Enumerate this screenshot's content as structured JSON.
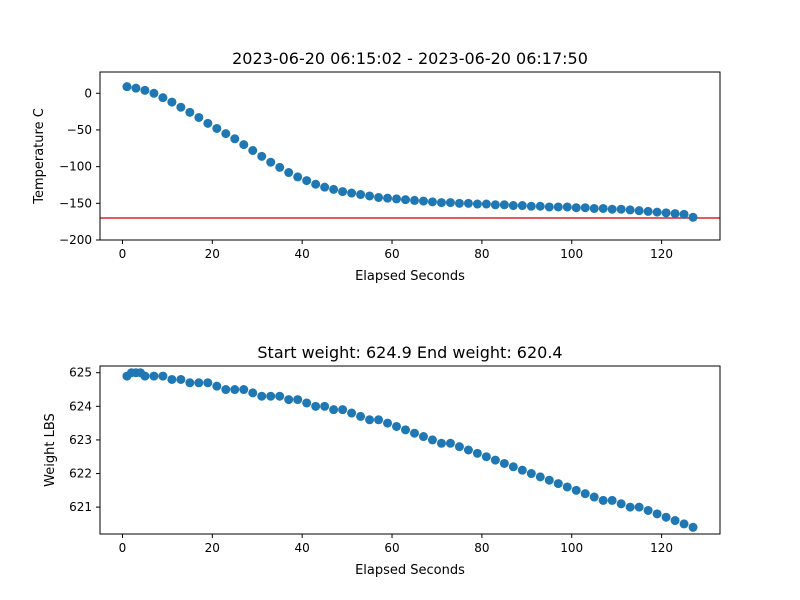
{
  "chart_data": [
    {
      "type": "scatter",
      "title": "2023-06-20 06:15:02 - 2023-06-20 06:17:50",
      "xlabel": "Elapsed Seconds",
      "ylabel": "Temperature C",
      "xlim": [
        -5,
        133
      ],
      "ylim": [
        -200,
        29
      ],
      "xticks": [
        0,
        20,
        40,
        60,
        80,
        100,
        120
      ],
      "yticks": [
        0,
        -50,
        -100,
        -150,
        -200
      ],
      "grid": false,
      "marker_color": "#1f77b4",
      "reference_line": {
        "y": -170,
        "color": "#d62728"
      },
      "series": [
        {
          "x": [
            1,
            3,
            5,
            7,
            9,
            11,
            13,
            15,
            17,
            19,
            21,
            23,
            25,
            27,
            29,
            31,
            33,
            35,
            37,
            39,
            41,
            43,
            45,
            47,
            49,
            51,
            53,
            55,
            57,
            59,
            61,
            63,
            65,
            67,
            69,
            71,
            73,
            75,
            77,
            79,
            81,
            83,
            85,
            87,
            89,
            91,
            93,
            95,
            97,
            99,
            101,
            103,
            105,
            107,
            109,
            111,
            113,
            115,
            117,
            119,
            121,
            123,
            125,
            127
          ],
          "y": [
            9,
            7,
            4,
            0,
            -6,
            -12,
            -19,
            -26,
            -33,
            -41,
            -48,
            -55,
            -62,
            -70,
            -78,
            -86,
            -94,
            -101,
            -108,
            -114,
            -119,
            -124,
            -128,
            -131,
            -134,
            -136,
            -138,
            -140,
            -142,
            -143,
            -144,
            -145,
            -146,
            -147,
            -148,
            -149,
            -149,
            -150,
            -150,
            -151,
            -151,
            -152,
            -152,
            -153,
            -153,
            -154,
            -154,
            -155,
            -155,
            -155,
            -156,
            -156,
            -157,
            -157,
            -158,
            -158,
            -159,
            -160,
            -161,
            -162,
            -163,
            -164,
            -165,
            -169
          ]
        }
      ]
    },
    {
      "type": "scatter",
      "title": "Start weight: 624.9 End weight: 620.4",
      "xlabel": "Elapsed Seconds",
      "ylabel": "Weight LBS",
      "xlim": [
        -5,
        133
      ],
      "ylim": [
        620.2,
        625.2
      ],
      "xticks": [
        0,
        20,
        40,
        60,
        80,
        100,
        120
      ],
      "yticks": [
        621,
        622,
        623,
        624,
        625
      ],
      "grid": false,
      "marker_color": "#1f77b4",
      "series": [
        {
          "x": [
            1,
            2,
            3,
            4,
            5,
            7,
            9,
            11,
            13,
            15,
            17,
            19,
            21,
            23,
            25,
            27,
            29,
            31,
            33,
            35,
            37,
            39,
            41,
            43,
            45,
            47,
            49,
            51,
            53,
            55,
            57,
            59,
            61,
            63,
            65,
            67,
            69,
            71,
            73,
            75,
            77,
            79,
            81,
            83,
            85,
            87,
            89,
            91,
            93,
            95,
            97,
            99,
            101,
            103,
            105,
            107,
            109,
            111,
            113,
            115,
            117,
            119,
            121,
            123,
            125,
            127
          ],
          "y": [
            624.9,
            625.0,
            625.0,
            625.0,
            624.9,
            624.9,
            624.9,
            624.8,
            624.8,
            624.7,
            624.7,
            624.7,
            624.6,
            624.5,
            624.5,
            624.5,
            624.4,
            624.3,
            624.3,
            624.3,
            624.2,
            624.2,
            624.1,
            624.0,
            624.0,
            623.9,
            623.9,
            623.8,
            623.7,
            623.6,
            623.6,
            623.5,
            623.4,
            623.3,
            623.2,
            623.1,
            623.0,
            622.9,
            622.9,
            622.8,
            622.7,
            622.6,
            622.5,
            622.4,
            622.3,
            622.2,
            622.1,
            622.0,
            621.9,
            621.8,
            621.7,
            621.6,
            621.5,
            621.4,
            621.3,
            621.2,
            621.2,
            621.1,
            621.0,
            621.0,
            620.9,
            620.8,
            620.7,
            620.6,
            620.5,
            620.4
          ]
        }
      ]
    }
  ]
}
